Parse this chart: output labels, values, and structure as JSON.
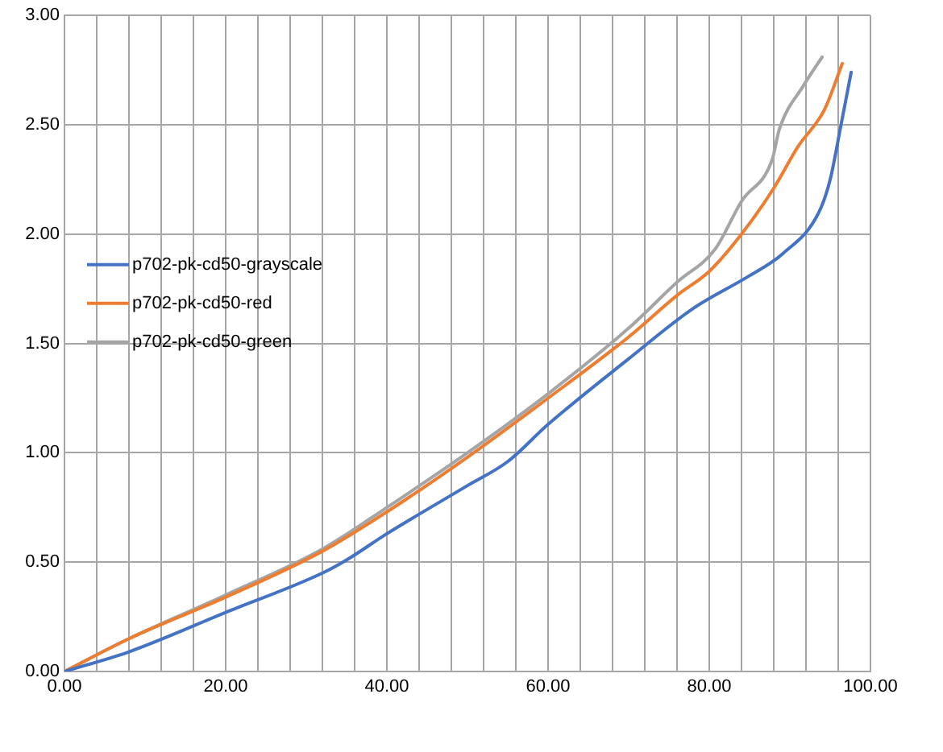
{
  "chart_data": {
    "type": "line",
    "xlim": [
      0,
      100
    ],
    "xticks": [
      {
        "value": 0,
        "label": "0.00"
      },
      {
        "value": 4,
        "label": null
      },
      {
        "value": 8,
        "label": null
      },
      {
        "value": 12,
        "label": null
      },
      {
        "value": 16,
        "label": null
      },
      {
        "value": 20,
        "label": "20.00"
      },
      {
        "value": 24,
        "label": null
      },
      {
        "value": 28,
        "label": null
      },
      {
        "value": 32,
        "label": null
      },
      {
        "value": 36,
        "label": null
      },
      {
        "value": 40,
        "label": "40.00"
      },
      {
        "value": 44,
        "label": null
      },
      {
        "value": 48,
        "label": null
      },
      {
        "value": 52,
        "label": null
      },
      {
        "value": 56,
        "label": null
      },
      {
        "value": 60,
        "label": "60.00"
      },
      {
        "value": 64,
        "label": null
      },
      {
        "value": 68,
        "label": null
      },
      {
        "value": 72,
        "label": null
      },
      {
        "value": 76,
        "label": null
      },
      {
        "value": 80,
        "label": "80.00"
      },
      {
        "value": 84,
        "label": null
      },
      {
        "value": 88,
        "label": null
      },
      {
        "value": 92,
        "label": null
      },
      {
        "value": 96,
        "label": null
      },
      {
        "value": 100,
        "label": "100.00"
      }
    ],
    "ylim": [
      0,
      3
    ],
    "yticks": [
      {
        "value": 0,
        "label": "0.00"
      },
      {
        "value": 0.5,
        "label": "0.50"
      },
      {
        "value": 1,
        "label": "1.00"
      },
      {
        "value": 1.5,
        "label": "1.50"
      },
      {
        "value": 2,
        "label": "2.00"
      },
      {
        "value": 2.5,
        "label": "2.50"
      },
      {
        "value": 3,
        "label": "3.00"
      }
    ],
    "grid": true,
    "legend": "left",
    "marker": "none",
    "line_style": "solid",
    "series": [
      {
        "name": "p702-pk-cd50-grayscale",
        "color": "#4472c4",
        "x": [
          0,
          8,
          20,
          32,
          35,
          40,
          50,
          55,
          60,
          70,
          78,
          85,
          89.1,
          93.6,
          95,
          96.3,
          97.6
        ],
        "values": [
          0,
          0.09,
          0.27,
          0.45,
          0.51,
          0.63,
          0.85,
          0.96,
          1.13,
          1.43,
          1.66,
          1.81,
          1.91,
          2.1,
          2.25,
          2.49,
          2.74
        ]
      },
      {
        "name": "p702-pk-cd50-red",
        "color": "#ed7d31",
        "x": [
          0,
          8,
          20,
          32,
          40,
          50,
          60,
          70,
          76,
          80,
          84,
          88,
          91,
          94.3,
          96.5
        ],
        "values": [
          0,
          0.15,
          0.34,
          0.55,
          0.73,
          0.98,
          1.25,
          1.53,
          1.72,
          1.83,
          2,
          2.21,
          2.4,
          2.57,
          2.78
        ]
      },
      {
        "name": "p702-pk-cd50-green",
        "color": "#a5a5a5",
        "x": [
          0,
          8,
          20,
          32,
          40,
          50,
          60,
          70,
          76,
          80.7,
          84,
          87.8,
          88.7,
          91.7,
          94
        ],
        "values": [
          0,
          0.15,
          0.35,
          0.56,
          0.75,
          1,
          1.27,
          1.57,
          1.78,
          1.93,
          2.15,
          2.34,
          2.48,
          2.68,
          2.81
        ]
      }
    ]
  }
}
